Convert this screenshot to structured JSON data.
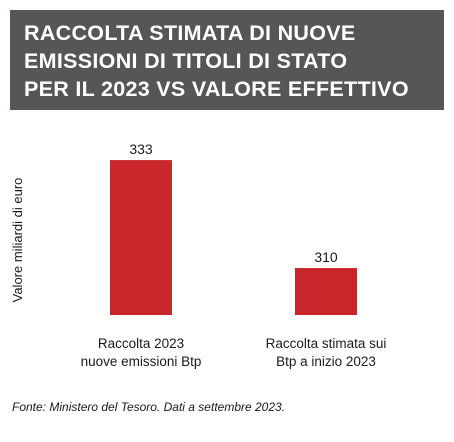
{
  "title_lines": [
    "RACCOLTA STIMATA DI NUOVE",
    "EMISSIONI DI TITOLI DI STATO",
    "PER IL 2023 VS VALORE EFFETTIVO"
  ],
  "footnote": "Fonte:  Ministero del  Tesoro. Dati a settembre 2023.",
  "colors": {
    "banner": "#555756",
    "bar": "#c8262a",
    "text": "#1a1a1a"
  },
  "chart_data": {
    "type": "bar",
    "title": "RACCOLTA STIMATA DI NUOVE EMISSIONI DI TITOLI DI STATO PER IL 2023 VS VALORE EFFETTIVO",
    "ylabel": "Valore miliardi di euro",
    "xlabel": "",
    "categories": [
      [
        "Raccolta 2023",
        "nuove emissioni Btp"
      ],
      [
        "Raccolta stimata sui",
        "Btp a inizio 2023"
      ]
    ],
    "values": [
      333,
      310
    ],
    "data_labels": [
      "333",
      "310"
    ],
    "ylim": [
      300,
      336
    ],
    "grid": false,
    "legend": "none"
  }
}
